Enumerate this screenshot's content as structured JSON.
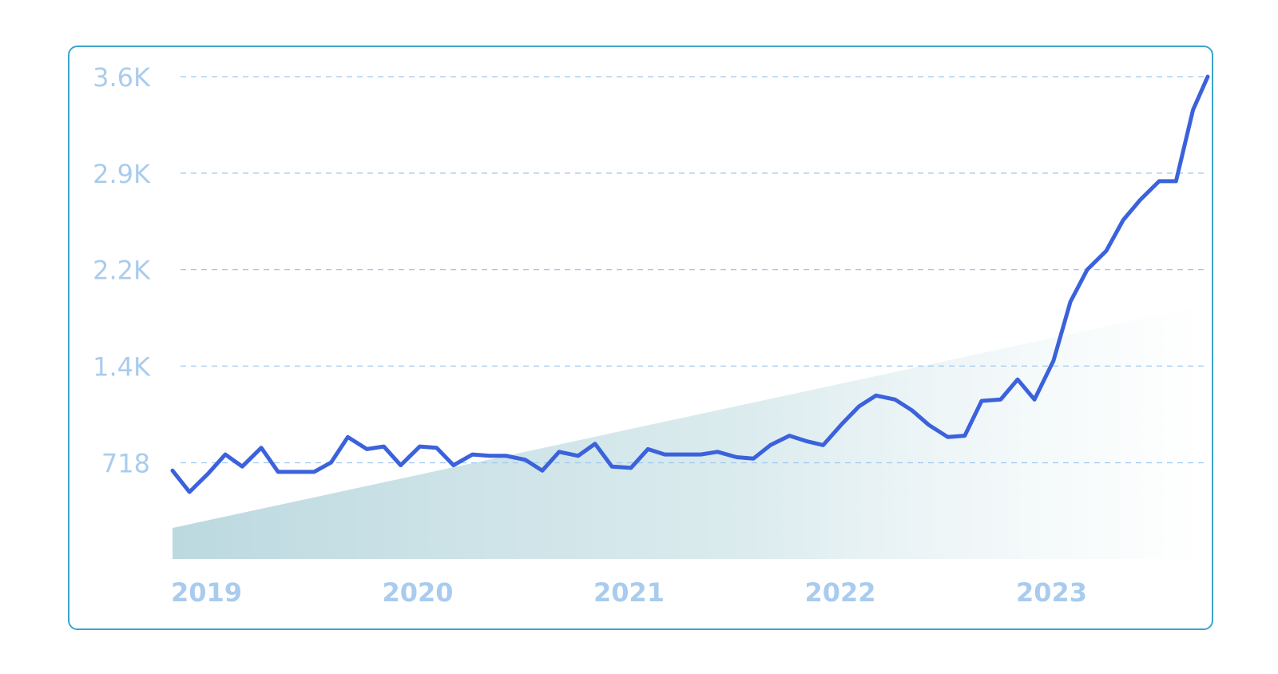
{
  "chart_data": {
    "type": "line",
    "title": "",
    "xlabel": "",
    "ylabel": "",
    "grid": "horizontal dashed",
    "legend": "none",
    "colors": {
      "line": "#3b62dc",
      "grid": "#9fc8ee",
      "tick_text": "#a9ccee",
      "border": "#3aa5cc",
      "area": "#bcd9e0"
    },
    "x_ticks": [
      {
        "label": "2019",
        "x": 2019.0
      },
      {
        "label": "2020",
        "x": 2020.0
      },
      {
        "label": "2021",
        "x": 2021.0
      },
      {
        "label": "2022",
        "x": 2022.0
      },
      {
        "label": "2023",
        "x": 2023.0
      }
    ],
    "y_ticks": [
      {
        "label": "718",
        "value": 718
      },
      {
        "label": "1.4K",
        "value": 1440
      },
      {
        "label": "2.2K",
        "value": 2160
      },
      {
        "label": "2.9K",
        "value": 2880
      },
      {
        "label": "3.6K",
        "value": 3600
      }
    ],
    "xlim": [
      2019.0,
      2023.9
    ],
    "ylim": [
      0,
      3600
    ],
    "background_area": {
      "x": [
        2019.0,
        2023.9
      ],
      "y": [
        232,
        1900
      ]
    },
    "series": [
      {
        "x": [
          2019.0,
          2019.08,
          2019.17,
          2019.25,
          2019.33,
          2019.42,
          2019.5,
          2019.58,
          2019.67,
          2019.75,
          2019.83,
          2019.92,
          2020.0,
          2020.08,
          2020.17,
          2020.25,
          2020.33,
          2020.42,
          2020.5,
          2020.58,
          2020.67,
          2020.75,
          2020.83,
          2020.92,
          2021.0,
          2021.08,
          2021.17,
          2021.25,
          2021.33,
          2021.42,
          2021.5,
          2021.58,
          2021.67,
          2021.75,
          2021.83,
          2021.92,
          2022.0,
          2022.08,
          2022.17,
          2022.25,
          2022.33,
          2022.42,
          2022.5,
          2022.58,
          2022.67,
          2022.75,
          2022.83,
          2022.92,
          2023.0,
          2023.08,
          2023.17,
          2023.25,
          2023.33,
          2023.42,
          2023.5,
          2023.58,
          2023.67,
          2023.75,
          2023.83,
          2023.9
        ],
        "y": [
          660,
          500,
          640,
          780,
          690,
          830,
          650,
          650,
          650,
          720,
          910,
          820,
          840,
          700,
          840,
          830,
          700,
          780,
          770,
          770,
          740,
          660,
          800,
          770,
          860,
          690,
          680,
          820,
          780,
          780,
          780,
          800,
          760,
          750,
          850,
          920,
          880,
          850,
          1010,
          1140,
          1220,
          1190,
          1110,
          1000,
          910,
          920,
          1180,
          1190,
          1340,
          1190,
          1480,
          1920,
          2160,
          2300,
          2530,
          2680,
          2820,
          2820,
          3350,
          3600
        ]
      }
    ]
  }
}
